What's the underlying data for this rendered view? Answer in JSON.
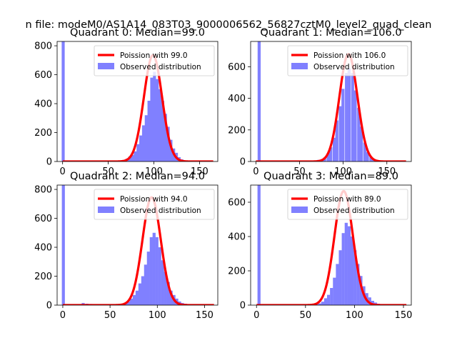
{
  "figure_title": "n file: modeM0/AS1A14_083T03_9000006562_56827cztM0_level2_quad_clean",
  "colors": {
    "poisson": "#ff0000",
    "observed": "#8080ff",
    "axis": "#000000",
    "background": "#ffffff"
  },
  "chart_data": [
    {
      "type": "bar",
      "title": "Quadrant 0: Median=99.0",
      "xlim": [
        -6,
        170
      ],
      "ylim": [
        0,
        830
      ],
      "xticks": [
        0,
        50,
        100,
        150
      ],
      "yticks": [
        0,
        200,
        400,
        600,
        800
      ],
      "legend": {
        "position": "top-right",
        "entries": [
          "Poission with 99.0",
          "Observed distribution"
        ]
      },
      "series": [
        {
          "name": "Observed distribution",
          "bin_width": 3.3,
          "bins": [
            [
              -1,
              830
            ],
            [
              63,
              5
            ],
            [
              66,
              10
            ],
            [
              69,
              20
            ],
            [
              72,
              35
            ],
            [
              75,
              45
            ],
            [
              78,
              70
            ],
            [
              81,
              120
            ],
            [
              84,
              180
            ],
            [
              87,
              250
            ],
            [
              90,
              320
            ],
            [
              93,
              420
            ],
            [
              96,
              580
            ],
            [
              99,
              620
            ],
            [
              102,
              570
            ],
            [
              105,
              500
            ],
            [
              108,
              420
            ],
            [
              111,
              330
            ],
            [
              114,
              240
            ],
            [
              117,
              150
            ],
            [
              120,
              90
            ],
            [
              123,
              60
            ],
            [
              126,
              30
            ],
            [
              129,
              15
            ],
            [
              132,
              5
            ]
          ]
        },
        {
          "name": "Poission with 99.0",
          "lambda": 99.0,
          "peak": 735,
          "x_range": [
            0,
            165
          ]
        }
      ]
    },
    {
      "type": "bar",
      "title": "Quadrant 1: Median=106.0",
      "xlim": [
        -6,
        178
      ],
      "ylim": [
        0,
        760
      ],
      "xticks": [
        0,
        50,
        100,
        150
      ],
      "yticks": [
        0,
        200,
        400,
        600
      ],
      "legend": {
        "position": "top-right",
        "entries": [
          "Poission with 106.0",
          "Observed distribution"
        ]
      },
      "series": [
        {
          "name": "Observed distribution",
          "bin_width": 3.5,
          "bins": [
            [
              2,
              760
            ],
            [
              28,
              5
            ],
            [
              67,
              5
            ],
            [
              70,
              10
            ],
            [
              74,
              15
            ],
            [
              77,
              25
            ],
            [
              81,
              50
            ],
            [
              84,
              90
            ],
            [
              88,
              150
            ],
            [
              91,
              260
            ],
            [
              95,
              350
            ],
            [
              98,
              460
            ],
            [
              102,
              560
            ],
            [
              105,
              590
            ],
            [
              109,
              560
            ],
            [
              112,
              450
            ],
            [
              116,
              340
            ],
            [
              119,
              220
            ],
            [
              123,
              120
            ],
            [
              126,
              60
            ],
            [
              130,
              30
            ],
            [
              133,
              15
            ],
            [
              137,
              5
            ]
          ]
        },
        {
          "name": "Poission with 106.0",
          "lambda": 106.0,
          "peak": 680,
          "x_range": [
            0,
            172
          ]
        }
      ]
    },
    {
      "type": "bar",
      "title": "Quadrant 2: Median=94.0",
      "xlim": [
        -6,
        164
      ],
      "ylim": [
        0,
        830
      ],
      "xticks": [
        0,
        50,
        100,
        150
      ],
      "yticks": [
        0,
        200,
        400,
        600,
        800
      ],
      "legend": {
        "position": "top-right",
        "entries": [
          "Poission with 94.0",
          "Observed distribution"
        ]
      },
      "series": [
        {
          "name": "Observed distribution",
          "bin_width": 3.2,
          "bins": [
            [
              -1,
              830
            ],
            [
              20,
              15
            ],
            [
              24,
              10
            ],
            [
              28,
              8
            ],
            [
              35,
              5
            ],
            [
              52,
              5
            ],
            [
              62,
              8
            ],
            [
              65,
              15
            ],
            [
              68,
              25
            ],
            [
              71,
              45
            ],
            [
              74,
              70
            ],
            [
              77,
              100
            ],
            [
              80,
              150
            ],
            [
              83,
              200
            ],
            [
              86,
              280
            ],
            [
              89,
              370
            ],
            [
              92,
              470
            ],
            [
              95,
              500
            ],
            [
              98,
              470
            ],
            [
              101,
              400
            ],
            [
              104,
              310
            ],
            [
              107,
              230
            ],
            [
              110,
              160
            ],
            [
              113,
              100
            ],
            [
              116,
              70
            ],
            [
              119,
              45
            ],
            [
              122,
              25
            ],
            [
              125,
              15
            ],
            [
              128,
              10
            ],
            [
              131,
              5
            ]
          ]
        },
        {
          "name": "Poission with 94.0",
          "lambda": 94.0,
          "peak": 745,
          "x_range": [
            0,
            160
          ]
        }
      ]
    },
    {
      "type": "bar",
      "title": "Quadrant 3: Median=89.0",
      "xlim": [
        -6,
        158
      ],
      "ylim": [
        0,
        700
      ],
      "xticks": [
        0,
        50,
        100,
        150
      ],
      "yticks": [
        0,
        200,
        400,
        600
      ],
      "legend": {
        "position": "top-right",
        "entries": [
          "Poission with 89.0",
          "Observed distribution"
        ]
      },
      "series": [
        {
          "name": "Observed distribution",
          "bin_width": 3.1,
          "bins": [
            [
              1,
              700
            ],
            [
              24,
              5
            ],
            [
              60,
              5
            ],
            [
              63,
              10
            ],
            [
              66,
              20
            ],
            [
              69,
              40
            ],
            [
              72,
              60
            ],
            [
              75,
              100
            ],
            [
              78,
              160
            ],
            [
              81,
              240
            ],
            [
              84,
              320
            ],
            [
              87,
              420
            ],
            [
              90,
              480
            ],
            [
              93,
              460
            ],
            [
              96,
              400
            ],
            [
              99,
              320
            ],
            [
              102,
              240
            ],
            [
              105,
              170
            ],
            [
              108,
              110
            ],
            [
              111,
              70
            ],
            [
              114,
              45
            ],
            [
              117,
              25
            ],
            [
              120,
              15
            ],
            [
              123,
              8
            ]
          ]
        },
        {
          "name": "Poission with 89.0",
          "lambda": 89.0,
          "peak": 665,
          "x_range": [
            0,
            153
          ]
        }
      ]
    }
  ]
}
